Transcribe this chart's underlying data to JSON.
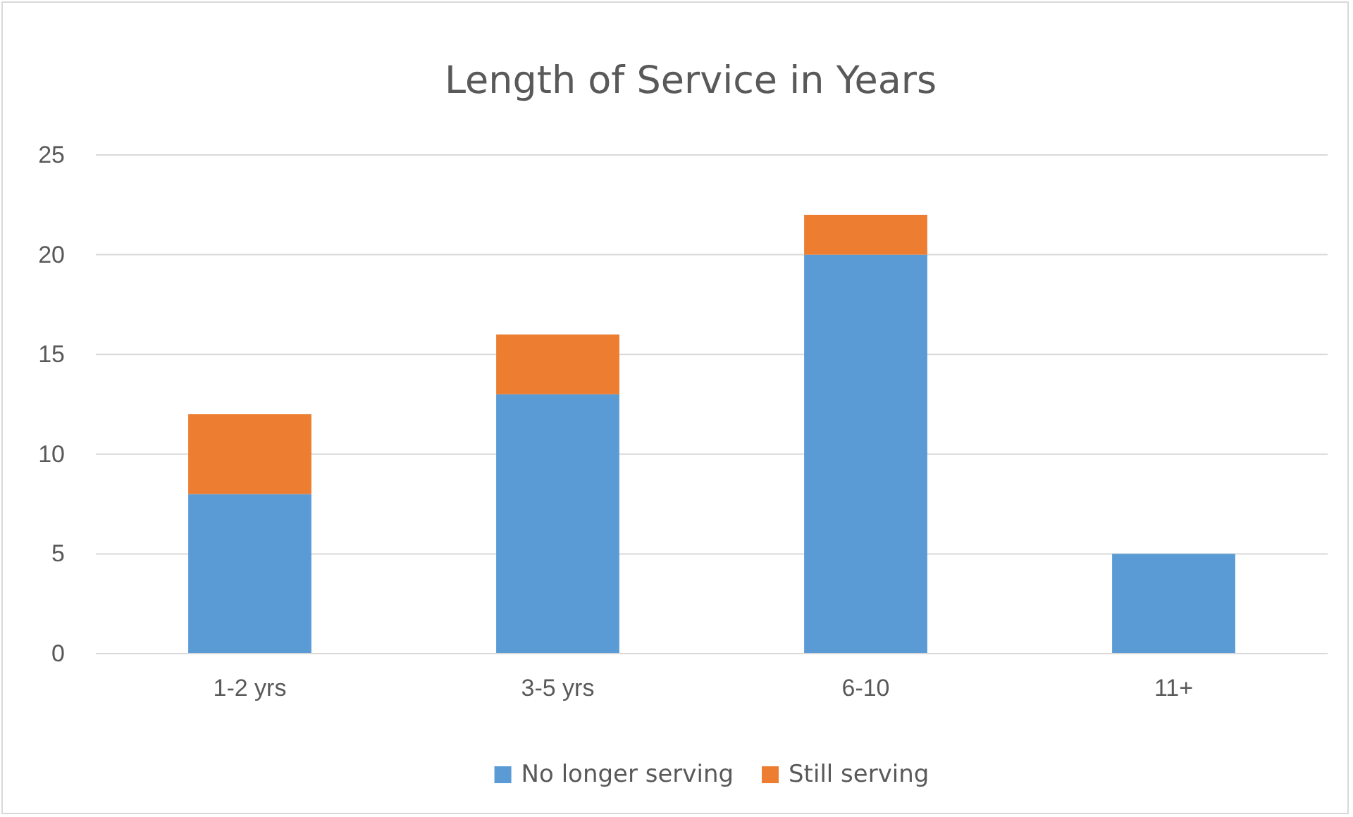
{
  "chart_data": {
    "type": "bar",
    "title": "Length of Service in Years",
    "categories": [
      "1-2 yrs",
      "3-5 yrs",
      "6-10",
      "11+"
    ],
    "series": [
      {
        "name": "No longer serving",
        "color": "#5b9bd5",
        "values": [
          8,
          13,
          20,
          5
        ]
      },
      {
        "name": "Still serving",
        "color": "#ed7d31",
        "values": [
          4,
          3,
          2,
          null
        ]
      }
    ],
    "stacked": true,
    "ylim": [
      0,
      25
    ],
    "yticks": [
      0,
      5,
      10,
      15,
      20,
      25
    ],
    "grid": "y",
    "legend": "bottom"
  }
}
